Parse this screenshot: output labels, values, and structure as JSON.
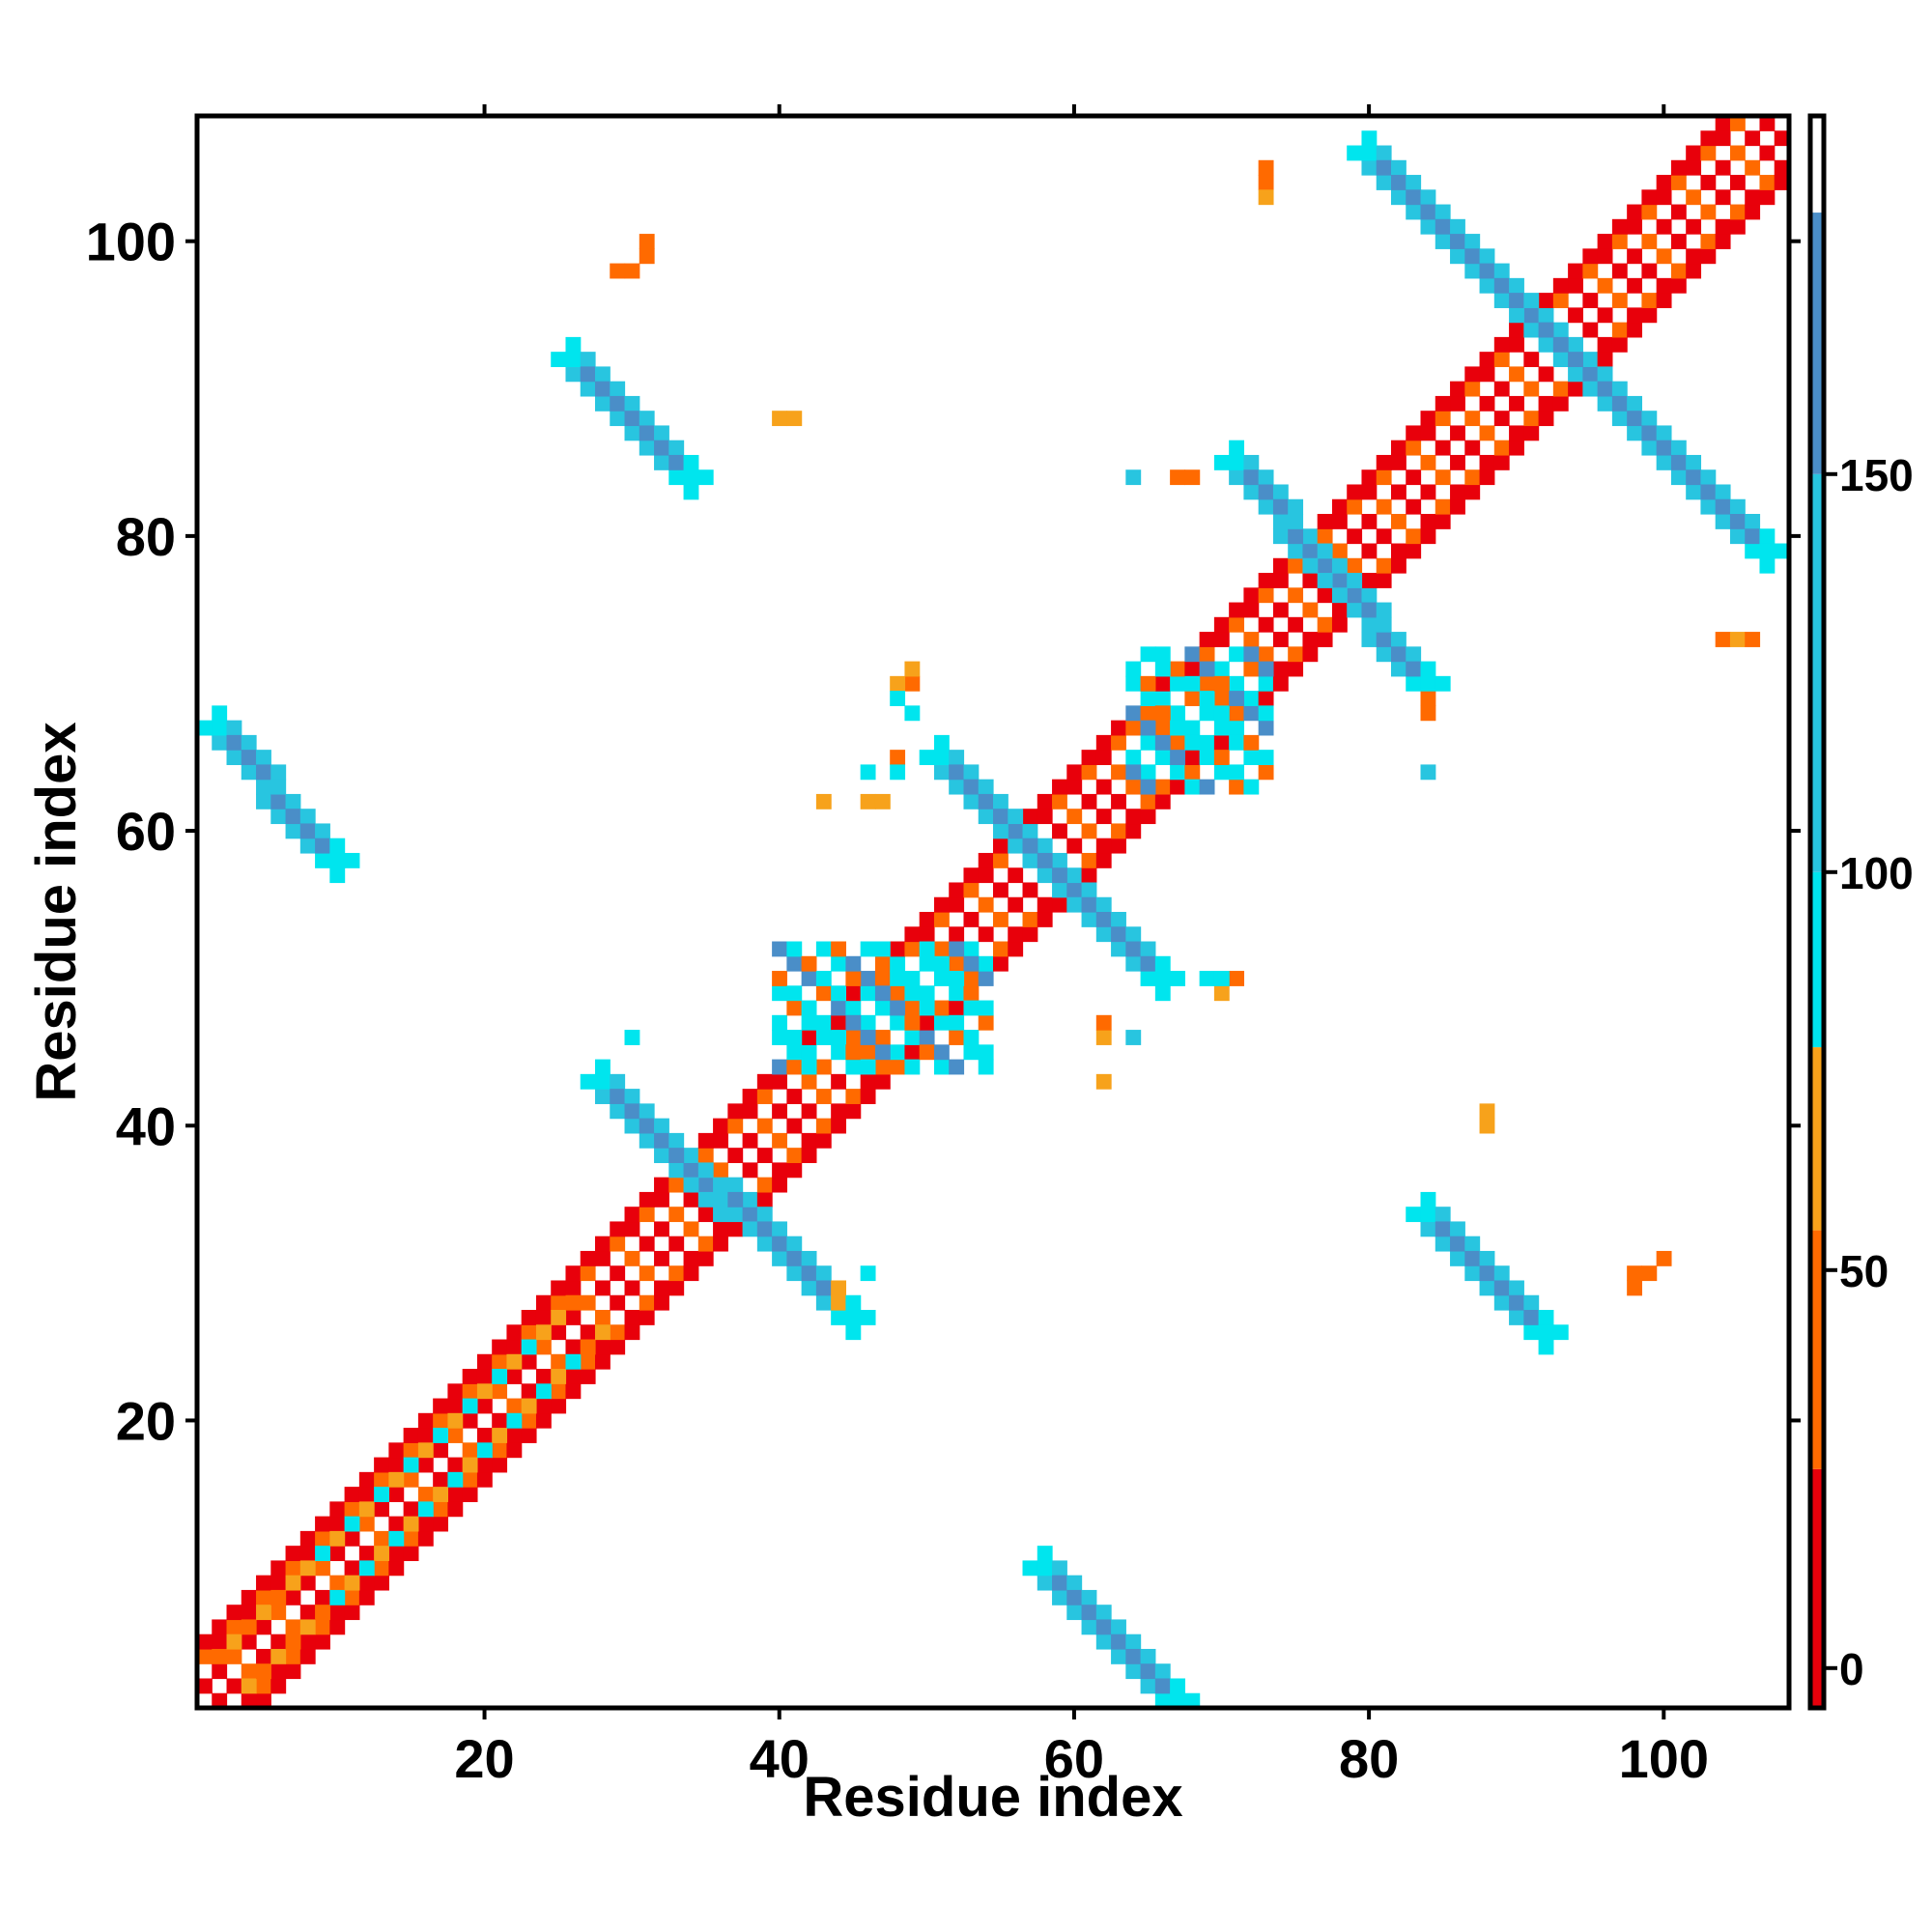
{
  "chart_data": {
    "type": "heatmap",
    "title": "",
    "xlabel": "Residue index",
    "ylabel": "Residue index",
    "xlim": [
      1,
      108
    ],
    "ylim": [
      1,
      108
    ],
    "x_ticks": [
      20,
      40,
      60,
      80,
      100
    ],
    "y_ticks": [
      20,
      40,
      60,
      80,
      100
    ],
    "grid": false,
    "legend": "colorbar-right",
    "colorbar": {
      "range": [
        -5,
        195
      ],
      "ticks": [
        0,
        50,
        100,
        150
      ],
      "stops": [
        {
          "from": -5,
          "to": 25,
          "color": "#e8000b"
        },
        {
          "from": 25,
          "to": 55,
          "color": "#ff6a00"
        },
        {
          "from": 55,
          "to": 78,
          "color": "#f7a21b"
        },
        {
          "from": 78,
          "to": 100,
          "color": "#00e5ee"
        },
        {
          "from": 100,
          "to": 150,
          "color": "#28c5e0"
        },
        {
          "from": 150,
          "to": 195,
          "color": "#4a8ec8"
        }
      ]
    },
    "bands": [
      {
        "name": "main-diagonal",
        "x0": 1,
        "y0": 1,
        "x1": 107,
        "y1": 107,
        "kind": "parallel",
        "value": 5
      },
      {
        "name": "helix-n-term",
        "x0": 2,
        "y0": 4,
        "x1": 26,
        "y1": 28,
        "kind": "parallel",
        "value": 60
      },
      {
        "name": "helix-n-term-inner",
        "x0": 8,
        "y0": 10,
        "x1": 24,
        "y1": 26,
        "kind": "parallel",
        "value": 88
      },
      {
        "name": "helix-mid",
        "x0": 40,
        "y0": 44,
        "x1": 54,
        "y1": 52,
        "kind": "block",
        "value": 90
      },
      {
        "name": "helix-mid-2",
        "x0": 64,
        "y0": 63,
        "x1": 73,
        "y1": 72,
        "kind": "block",
        "value": 95
      },
      {
        "name": "sheet-1",
        "x0": 28,
        "y0": 43,
        "x1": 45,
        "y1": 27,
        "kind": "anti",
        "value": 160
      },
      {
        "name": "sheet-2",
        "x0": 51,
        "y0": 65,
        "x1": 66,
        "y1": 50,
        "kind": "anti",
        "value": 165
      },
      {
        "name": "sheet-3",
        "x0": 71,
        "y0": 85,
        "x1": 84,
        "y1": 70,
        "kind": "anti",
        "value": 160
      },
      {
        "name": "sheet-4",
        "x0": 80,
        "y0": 106,
        "x1": 107,
        "y1": 79,
        "kind": "anti",
        "value": 165
      },
      {
        "name": "sheet-5",
        "x0": 2,
        "y0": 67,
        "x1": 10,
        "y1": 58,
        "kind": "anti",
        "value": 150
      },
      {
        "name": "sheet-6",
        "x0": 58,
        "y0": 10,
        "x1": 67,
        "y1": 1,
        "kind": "anti",
        "value": 150
      },
      {
        "name": "sheet-7",
        "x0": 26,
        "y0": 92,
        "x1": 34,
        "y1": 84,
        "kind": "anti",
        "value": 160
      },
      {
        "name": "sheet-8",
        "x0": 84,
        "y0": 34,
        "x1": 92,
        "y1": 26,
        "kind": "anti",
        "value": 160
      }
    ],
    "scattered": [
      {
        "x": 30,
        "y": 98,
        "value": 45
      },
      {
        "x": 31,
        "y": 99,
        "value": 45
      },
      {
        "x": 31,
        "y": 100,
        "value": 45
      },
      {
        "x": 29,
        "y": 98,
        "value": 45
      },
      {
        "x": 73,
        "y": 104,
        "value": 50
      },
      {
        "x": 73,
        "y": 105,
        "value": 50
      },
      {
        "x": 73,
        "y": 103,
        "value": 55
      },
      {
        "x": 40,
        "y": 88,
        "value": 65
      },
      {
        "x": 41,
        "y": 88,
        "value": 65
      },
      {
        "x": 64,
        "y": 84,
        "value": 110
      },
      {
        "x": 67,
        "y": 84,
        "value": 45
      },
      {
        "x": 68,
        "y": 84,
        "value": 45
      },
      {
        "x": 49,
        "y": 70,
        "value": 45
      },
      {
        "x": 49,
        "y": 71,
        "value": 55
      },
      {
        "x": 48,
        "y": 70,
        "value": 55
      },
      {
        "x": 48,
        "y": 69,
        "value": 90
      },
      {
        "x": 49,
        "y": 68,
        "value": 90
      },
      {
        "x": 48,
        "y": 65,
        "value": 50
      },
      {
        "x": 48,
        "y": 64,
        "value": 90
      },
      {
        "x": 46,
        "y": 64,
        "value": 95
      },
      {
        "x": 43,
        "y": 62,
        "value": 60
      },
      {
        "x": 46,
        "y": 62,
        "value": 55
      },
      {
        "x": 47,
        "y": 62,
        "value": 55
      },
      {
        "x": 84,
        "y": 64,
        "value": 110
      },
      {
        "x": 84,
        "y": 68,
        "value": 45
      },
      {
        "x": 84,
        "y": 69,
        "value": 45
      },
      {
        "x": 104,
        "y": 73,
        "value": 50
      },
      {
        "x": 105,
        "y": 73,
        "value": 55
      },
      {
        "x": 106,
        "y": 73,
        "value": 50
      },
      {
        "x": 30,
        "y": 46,
        "value": 95
      },
      {
        "x": 62,
        "y": 46,
        "value": 55
      },
      {
        "x": 62,
        "y": 47,
        "value": 45
      },
      {
        "x": 64,
        "y": 46,
        "value": 110
      },
      {
        "x": 62,
        "y": 43,
        "value": 55
      },
      {
        "x": 69,
        "y": 50,
        "value": 95
      },
      {
        "x": 70,
        "y": 49,
        "value": 55
      },
      {
        "x": 71,
        "y": 50,
        "value": 50
      },
      {
        "x": 70,
        "y": 50,
        "value": 95
      },
      {
        "x": 88,
        "y": 40,
        "value": 60
      },
      {
        "x": 88,
        "y": 41,
        "value": 60
      },
      {
        "x": 46,
        "y": 30,
        "value": 95
      },
      {
        "x": 98,
        "y": 29,
        "value": 45
      },
      {
        "x": 98,
        "y": 30,
        "value": 45
      },
      {
        "x": 99,
        "y": 30,
        "value": 45
      },
      {
        "x": 100,
        "y": 31,
        "value": 45
      },
      {
        "x": 44,
        "y": 28,
        "value": 65
      },
      {
        "x": 44,
        "y": 29,
        "value": 65
      }
    ]
  }
}
